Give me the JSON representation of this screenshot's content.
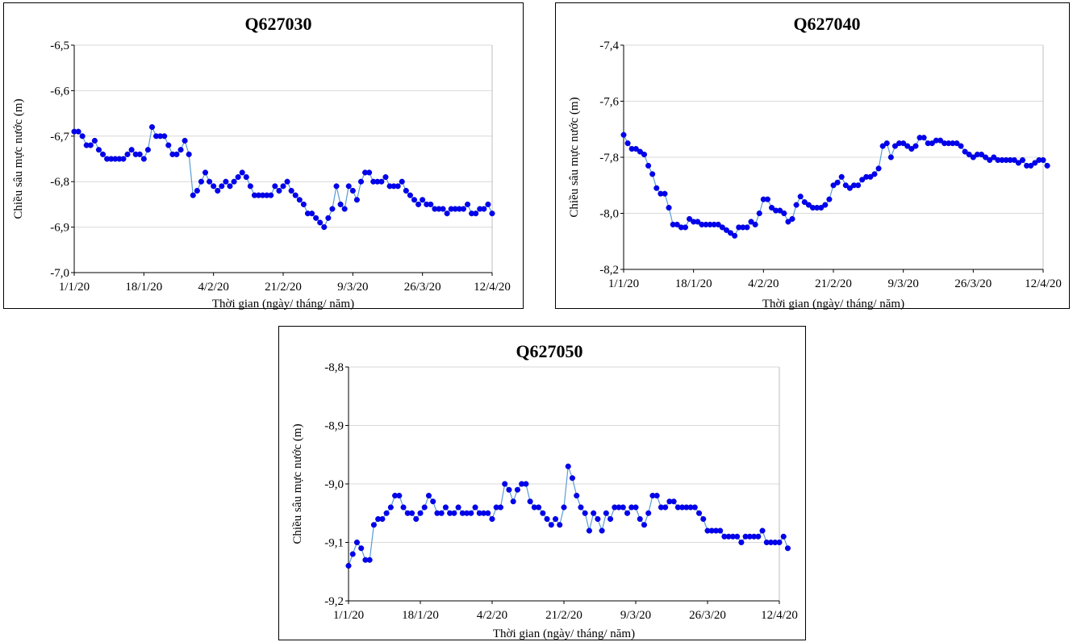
{
  "chart_data": [
    {
      "type": "line",
      "title": "Q627030",
      "xlabel": "Thời gian (ngày/ tháng/ năm)",
      "ylabel": "Chiều sâu mực nước (m)",
      "ylim": [
        -7.0,
        -6.5
      ],
      "yticks": [
        -6.5,
        -6.6,
        -6.7,
        -6.8,
        -6.9,
        -7.0
      ],
      "ytick_labels": [
        "-6,5",
        "-6,6",
        "-6,7",
        "-6,8",
        "-6,9",
        "-7,0"
      ],
      "xlim": [
        "2020-01-01",
        "2020-04-12"
      ],
      "xticks": [
        "2020-01-01",
        "2020-01-18",
        "2020-02-04",
        "2020-02-21",
        "2020-03-09",
        "2020-03-26",
        "2020-04-12"
      ],
      "xtick_labels": [
        "1/1/20",
        "18/1/20",
        "4/2/20",
        "21/2/20",
        "9/3/20",
        "26/3/20",
        "12/4/20"
      ],
      "grid": true,
      "legend": false,
      "color": "#0000ee",
      "line_color": "#5b9bd5",
      "series": [
        {
          "values": [
            -6.69,
            -6.69,
            -6.7,
            -6.72,
            -6.72,
            -6.71,
            -6.73,
            -6.74,
            -6.75,
            -6.75,
            -6.75,
            -6.75,
            -6.75,
            -6.74,
            -6.73,
            -6.74,
            -6.74,
            -6.75,
            -6.73,
            -6.68,
            -6.7,
            -6.7,
            -6.7,
            -6.72,
            -6.74,
            -6.74,
            -6.73,
            -6.71,
            -6.74,
            -6.83,
            -6.82,
            -6.8,
            -6.78,
            -6.8,
            -6.81,
            -6.82,
            -6.81,
            -6.8,
            -6.81,
            -6.8,
            -6.79,
            -6.78,
            -6.79,
            -6.81,
            -6.83,
            -6.83,
            -6.83,
            -6.83,
            -6.83,
            -6.81,
            -6.82,
            -6.81,
            -6.8,
            -6.82,
            -6.83,
            -6.84,
            -6.85,
            -6.87,
            -6.87,
            -6.88,
            -6.89,
            -6.9,
            -6.88,
            -6.86,
            -6.81,
            -6.85,
            -6.86,
            -6.81,
            -6.82,
            -6.84,
            -6.8,
            -6.78,
            -6.78,
            -6.8,
            -6.8,
            -6.8,
            -6.79,
            -6.81,
            -6.81,
            -6.81,
            -6.8,
            -6.82,
            -6.83,
            -6.84,
            -6.85,
            -6.84,
            -6.85,
            -6.85,
            -6.86,
            -6.86,
            -6.86,
            -6.87,
            -6.86,
            -6.86,
            -6.86,
            -6.86,
            -6.85,
            -6.87,
            -6.87,
            -6.86,
            -6.86,
            -6.85,
            -6.87
          ]
        }
      ]
    },
    {
      "type": "line",
      "title": "Q627040",
      "xlabel": "Thời gian (ngày/ tháng/ năm)",
      "ylabel": "Chiều sâu mực nước (m)",
      "ylim": [
        -8.2,
        -7.4
      ],
      "yticks": [
        -7.4,
        -7.6,
        -7.8,
        -8.0,
        -8.2
      ],
      "ytick_labels": [
        "-7,4",
        "-7,6",
        "-7,8",
        "-8,0",
        "-8,2"
      ],
      "xlim": [
        "2020-01-01",
        "2020-04-12"
      ],
      "xticks": [
        "2020-01-01",
        "2020-01-18",
        "2020-02-04",
        "2020-02-21",
        "2020-03-09",
        "2020-03-26",
        "2020-04-12"
      ],
      "xtick_labels": [
        "1/1/20",
        "18/1/20",
        "4/2/20",
        "21/2/20",
        "9/3/20",
        "26/3/20",
        "12/4/20"
      ],
      "grid": true,
      "legend": false,
      "color": "#0000ee",
      "line_color": "#5b9bd5",
      "series": [
        {
          "values": [
            -7.72,
            -7.75,
            -7.77,
            -7.77,
            -7.78,
            -7.79,
            -7.83,
            -7.86,
            -7.91,
            -7.93,
            -7.93,
            -7.98,
            -8.04,
            -8.04,
            -8.05,
            -8.05,
            -8.02,
            -8.03,
            -8.03,
            -8.04,
            -8.04,
            -8.04,
            -8.04,
            -8.04,
            -8.05,
            -8.06,
            -8.07,
            -8.08,
            -8.05,
            -8.05,
            -8.05,
            -8.03,
            -8.04,
            -8.0,
            -7.95,
            -7.95,
            -7.98,
            -7.99,
            -7.99,
            -8.0,
            -8.03,
            -8.02,
            -7.97,
            -7.94,
            -7.96,
            -7.97,
            -7.98,
            -7.98,
            -7.98,
            -7.97,
            -7.95,
            -7.9,
            -7.89,
            -7.87,
            -7.9,
            -7.91,
            -7.9,
            -7.9,
            -7.88,
            -7.87,
            -7.87,
            -7.86,
            -7.84,
            -7.76,
            -7.75,
            -7.8,
            -7.76,
            -7.75,
            -7.75,
            -7.76,
            -7.77,
            -7.76,
            -7.73,
            -7.73,
            -7.75,
            -7.75,
            -7.74,
            -7.74,
            -7.75,
            -7.75,
            -7.75,
            -7.75,
            -7.76,
            -7.78,
            -7.79,
            -7.8,
            -7.79,
            -7.79,
            -7.8,
            -7.81,
            -7.8,
            -7.81,
            -7.81,
            -7.81,
            -7.81,
            -7.81,
            -7.82,
            -7.81,
            -7.83,
            -7.83,
            -7.82,
            -7.81,
            -7.81,
            -7.83
          ]
        }
      ]
    },
    {
      "type": "line",
      "title": "Q627050",
      "xlabel": "Thời gian (ngày/ tháng/ năm)",
      "ylabel": "Chiều sâu mực nước (m)",
      "ylim": [
        -9.2,
        -8.8
      ],
      "yticks": [
        -8.8,
        -8.9,
        -9.0,
        -9.1,
        -9.2
      ],
      "ytick_labels": [
        "-8,8",
        "-8,9",
        "-9,0",
        "-9,1",
        "-9,2"
      ],
      "xlim": [
        "2020-01-01",
        "2020-04-12"
      ],
      "xticks": [
        "2020-01-01",
        "2020-01-18",
        "2020-02-04",
        "2020-02-21",
        "2020-03-09",
        "2020-03-26",
        "2020-04-12"
      ],
      "xtick_labels": [
        "1/1/20",
        "18/1/20",
        "4/2/20",
        "21/2/20",
        "9/3/20",
        "26/3/20",
        "12/4/20"
      ],
      "grid": true,
      "legend": false,
      "color": "#0000ee",
      "line_color": "#5b9bd5",
      "series": [
        {
          "values": [
            -9.14,
            -9.12,
            -9.1,
            -9.11,
            -9.13,
            -9.13,
            -9.07,
            -9.06,
            -9.06,
            -9.05,
            -9.04,
            -9.02,
            -9.02,
            -9.04,
            -9.05,
            -9.05,
            -9.06,
            -9.05,
            -9.04,
            -9.02,
            -9.03,
            -9.05,
            -9.05,
            -9.04,
            -9.05,
            -9.05,
            -9.04,
            -9.05,
            -9.05,
            -9.05,
            -9.04,
            -9.05,
            -9.05,
            -9.05,
            -9.06,
            -9.04,
            -9.04,
            -9.0,
            -9.01,
            -9.03,
            -9.01,
            -9.0,
            -9.0,
            -9.03,
            -9.04,
            -9.04,
            -9.05,
            -9.06,
            -9.07,
            -9.06,
            -9.07,
            -9.04,
            -8.97,
            -8.99,
            -9.02,
            -9.04,
            -9.05,
            -9.08,
            -9.05,
            -9.06,
            -9.08,
            -9.05,
            -9.06,
            -9.04,
            -9.04,
            -9.04,
            -9.05,
            -9.04,
            -9.04,
            -9.06,
            -9.07,
            -9.05,
            -9.02,
            -9.02,
            -9.04,
            -9.04,
            -9.03,
            -9.03,
            -9.04,
            -9.04,
            -9.04,
            -9.04,
            -9.04,
            -9.05,
            -9.06,
            -9.08,
            -9.08,
            -9.08,
            -9.08,
            -9.09,
            -9.09,
            -9.09,
            -9.09,
            -9.1,
            -9.09,
            -9.09,
            -9.09,
            -9.09,
            -9.08,
            -9.1,
            -9.1,
            -9.1,
            -9.1,
            -9.09,
            -9.11
          ]
        }
      ]
    }
  ]
}
